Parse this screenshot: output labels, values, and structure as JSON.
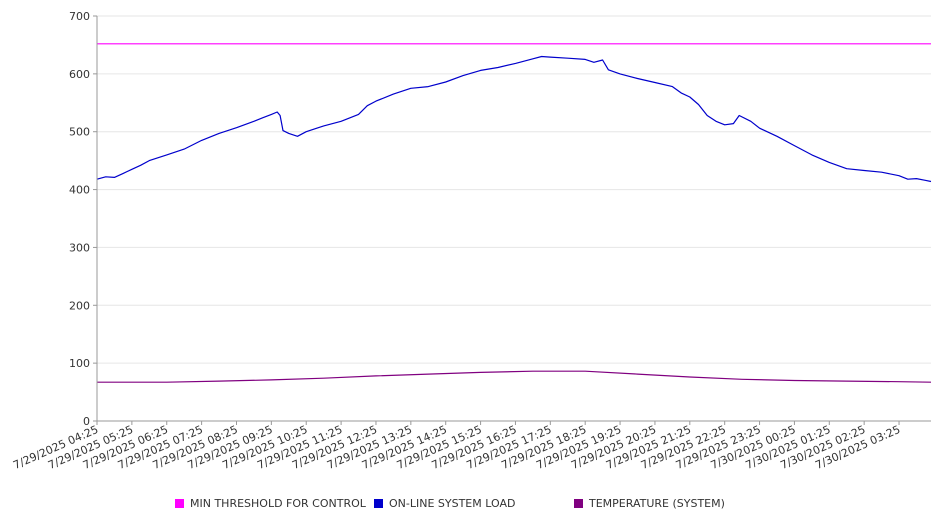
{
  "chart_data": {
    "type": "line",
    "title": "",
    "xlabel": "",
    "ylabel": "",
    "ylim": [
      0,
      700
    ],
    "yticks": [
      0,
      100,
      200,
      300,
      400,
      500,
      600,
      700
    ],
    "grid": true,
    "legend_position": "bottom",
    "x_range": [
      "7/29/2025 04:25",
      "7/30/2025 04:20"
    ],
    "xtick_labels": [
      "7/29/2025 04:25",
      "7/29/2025 05:25",
      "7/29/2025 06:25",
      "7/29/2025 07:25",
      "7/29/2025 08:25",
      "7/29/2025 09:25",
      "7/29/2025 10:25",
      "7/29/2025 11:25",
      "7/29/2025 12:25",
      "7/29/2025 13:25",
      "7/29/2025 14:25",
      "7/29/2025 15:25",
      "7/29/2025 16:25",
      "7/29/2025 17:25",
      "7/29/2025 18:25",
      "7/29/2025 19:25",
      "7/29/2025 20:25",
      "7/29/2025 21:25",
      "7/29/2025 22:25",
      "7/29/2025 23:25",
      "7/30/2025 00:25",
      "7/30/2025 01:25",
      "7/30/2025 02:25",
      "7/30/2025 03:25"
    ],
    "series": [
      {
        "name": "MIN THRESHOLD FOR CONTROL",
        "color": "#ff00ff",
        "points": [
          [
            "7/29/2025 04:25",
            652
          ],
          [
            "7/30/2025 04:20",
            652
          ]
        ]
      },
      {
        "name": "ON-LINE SYSTEM LOAD",
        "color": "#0000cc",
        "points": [
          [
            "7/29/2025 04:25",
            418
          ],
          [
            "7/29/2025 04:40",
            422
          ],
          [
            "7/29/2025 04:55",
            421
          ],
          [
            "7/29/2025 05:10",
            428
          ],
          [
            "7/29/2025 05:25",
            435
          ],
          [
            "7/29/2025 05:40",
            442
          ],
          [
            "7/29/2025 05:55",
            450
          ],
          [
            "7/29/2025 06:25",
            460
          ],
          [
            "7/29/2025 06:55",
            470
          ],
          [
            "7/29/2025 07:25",
            485
          ],
          [
            "7/29/2025 07:55",
            497
          ],
          [
            "7/29/2025 08:25",
            507
          ],
          [
            "7/29/2025 08:55",
            518
          ],
          [
            "7/29/2025 09:10",
            524
          ],
          [
            "7/29/2025 09:25",
            530
          ],
          [
            "7/29/2025 09:35",
            534
          ],
          [
            "7/29/2025 09:40",
            528
          ],
          [
            "7/29/2025 09:45",
            502
          ],
          [
            "7/29/2025 09:55",
            497
          ],
          [
            "7/29/2025 10:10",
            492
          ],
          [
            "7/29/2025 10:25",
            500
          ],
          [
            "7/29/2025 10:55",
            510
          ],
          [
            "7/29/2025 11:25",
            518
          ],
          [
            "7/29/2025 11:55",
            530
          ],
          [
            "7/29/2025 12:10",
            545
          ],
          [
            "7/29/2025 12:25",
            553
          ],
          [
            "7/29/2025 12:55",
            565
          ],
          [
            "7/29/2025 13:25",
            575
          ],
          [
            "7/29/2025 13:55",
            578
          ],
          [
            "7/29/2025 14:25",
            586
          ],
          [
            "7/29/2025 14:55",
            597
          ],
          [
            "7/29/2025 15:25",
            606
          ],
          [
            "7/29/2025 15:55",
            611
          ],
          [
            "7/29/2025 16:25",
            618
          ],
          [
            "7/29/2025 16:55",
            626
          ],
          [
            "7/29/2025 17:10",
            630
          ],
          [
            "7/29/2025 17:25",
            629
          ],
          [
            "7/29/2025 17:55",
            627
          ],
          [
            "7/29/2025 18:25",
            625
          ],
          [
            "7/29/2025 18:40",
            620
          ],
          [
            "7/29/2025 18:55",
            624
          ],
          [
            "7/29/2025 19:05",
            607
          ],
          [
            "7/29/2025 19:25",
            600
          ],
          [
            "7/29/2025 19:55",
            592
          ],
          [
            "7/29/2025 20:25",
            585
          ],
          [
            "7/29/2025 20:55",
            578
          ],
          [
            "7/29/2025 21:10",
            567
          ],
          [
            "7/29/2025 21:25",
            560
          ],
          [
            "7/29/2025 21:40",
            547
          ],
          [
            "7/29/2025 21:55",
            528
          ],
          [
            "7/29/2025 22:10",
            518
          ],
          [
            "7/29/2025 22:25",
            512
          ],
          [
            "7/29/2025 22:40",
            514
          ],
          [
            "7/29/2025 22:50",
            528
          ],
          [
            "7/29/2025 23:10",
            518
          ],
          [
            "7/29/2025 23:25",
            506
          ],
          [
            "7/29/2025 23:55",
            492
          ],
          [
            "7/30/2025 00:25",
            476
          ],
          [
            "7/30/2025 00:55",
            460
          ],
          [
            "7/30/2025 01:25",
            447
          ],
          [
            "7/30/2025 01:55",
            436
          ],
          [
            "7/30/2025 02:25",
            433
          ],
          [
            "7/30/2025 02:55",
            430
          ],
          [
            "7/30/2025 03:25",
            424
          ],
          [
            "7/30/2025 03:40",
            418
          ],
          [
            "7/30/2025 03:55",
            419
          ],
          [
            "7/30/2025 04:10",
            416
          ],
          [
            "7/30/2025 04:20",
            414
          ]
        ]
      },
      {
        "name": "TEMPERATURE (SYSTEM)",
        "color": "#800080",
        "points": [
          [
            "7/29/2025 04:25",
            67
          ],
          [
            "7/29/2025 06:25",
            67
          ],
          [
            "7/29/2025 07:55",
            69
          ],
          [
            "7/29/2025 09:25",
            71
          ],
          [
            "7/29/2025 10:55",
            74
          ],
          [
            "7/29/2025 12:25",
            78
          ],
          [
            "7/29/2025 13:55",
            81
          ],
          [
            "7/29/2025 15:25",
            84
          ],
          [
            "7/29/2025 16:55",
            86
          ],
          [
            "7/29/2025 18:25",
            86
          ],
          [
            "7/29/2025 19:55",
            81
          ],
          [
            "7/29/2025 21:25",
            76
          ],
          [
            "7/29/2025 22:55",
            72
          ],
          [
            "7/30/2025 00:25",
            70
          ],
          [
            "7/30/2025 01:55",
            69
          ],
          [
            "7/30/2025 03:25",
            68
          ],
          [
            "7/30/2025 04:20",
            67
          ]
        ]
      }
    ]
  }
}
